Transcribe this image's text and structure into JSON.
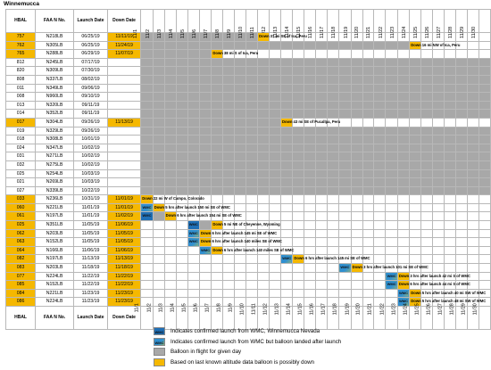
{
  "title": "Winnemucca",
  "headers": {
    "hbal": "HBAL",
    "faa": "FAA N No.",
    "launch": "Launch Date",
    "down": "Down Date"
  },
  "days": [
    "11/1",
    "11/2",
    "11/3",
    "11/4",
    "11/5",
    "11/6",
    "11/7",
    "11/8",
    "11/9",
    "11/10",
    "11/11",
    "11/12",
    "11/13",
    "11/14",
    "11/15",
    "11/16",
    "11/17",
    "11/18",
    "11/19",
    "11/20",
    "11/21",
    "11/22",
    "11/23",
    "11/24",
    "11/25",
    "11/26",
    "11/27",
    "11/28",
    "11/29",
    "11/30"
  ],
  "wmc_label": "WMC",
  "colors": {
    "highlight": "#f5b800",
    "in_flight": "#a8a8a8",
    "wmc": "#1f6fb6"
  },
  "rows": [
    {
      "hbal": "757",
      "faa": "N218LB",
      "launch": "06/25/19",
      "down": "11/11/19",
      "hi": true,
      "gray": [
        1,
        10
      ],
      "note_day": 11,
      "note": "Down 37 mi SE of Ica, Peru"
    },
    {
      "hbal": "762",
      "faa": "N305LB",
      "launch": "06/25/19",
      "down": "11/24/19",
      "hi": true,
      "gray": [
        1,
        23
      ],
      "note_day": 24,
      "note": "Down 16 mi NW of Ica, Peru"
    },
    {
      "hbal": "765",
      "faa": "N288LB",
      "launch": "06/29/19",
      "down": "11/07/19",
      "hi": true,
      "gray": [
        1,
        6
      ],
      "note_day": 7,
      "note": "Down 38 mi S of Ica, Peru"
    },
    {
      "hbal": "812",
      "faa": "N245LB",
      "launch": "07/17/19",
      "down": "",
      "gray": [
        1,
        30
      ]
    },
    {
      "hbal": "820",
      "faa": "N309LB",
      "launch": "07/30/19",
      "down": "",
      "gray": [
        1,
        30
      ]
    },
    {
      "hbal": "808",
      "faa": "N337LB",
      "launch": "08/02/19",
      "down": "",
      "gray": [
        1,
        30
      ]
    },
    {
      "hbal": "011",
      "faa": "N349LB",
      "launch": "09/06/19",
      "down": "",
      "gray": [
        1,
        30
      ]
    },
    {
      "hbal": "008",
      "faa": "N960LB",
      "launch": "09/10/19",
      "down": "",
      "gray": [
        1,
        30
      ]
    },
    {
      "hbal": "013",
      "faa": "N320LB",
      "launch": "09/11/19",
      "down": "",
      "gray": [
        1,
        30
      ]
    },
    {
      "hbal": "014",
      "faa": "N352LB",
      "launch": "09/11/19",
      "down": "",
      "gray": [
        1,
        30
      ]
    },
    {
      "hbal": "017",
      "faa": "N304LB",
      "launch": "09/26/19",
      "down": "11/13/19",
      "hi": true,
      "gray": [
        1,
        12
      ],
      "note_day": 13,
      "note": "Down 43 mi SE of Pucallpa, Peru"
    },
    {
      "hbal": "019",
      "faa": "N329LB",
      "launch": "09/26/19",
      "down": "",
      "gray": [
        1,
        30
      ]
    },
    {
      "hbal": "018",
      "faa": "N308LB",
      "launch": "10/01/19",
      "down": "",
      "gray": [
        1,
        30
      ]
    },
    {
      "hbal": "024",
      "faa": "N347LB",
      "launch": "10/02/19",
      "down": "",
      "gray": [
        1,
        30
      ]
    },
    {
      "hbal": "031",
      "faa": "N271LB",
      "launch": "10/02/19",
      "down": "",
      "gray": [
        1,
        30
      ]
    },
    {
      "hbal": "032",
      "faa": "N275LB",
      "launch": "10/02/19",
      "down": "",
      "gray": [
        1,
        30
      ]
    },
    {
      "hbal": "025",
      "faa": "N254LB",
      "launch": "10/03/19",
      "down": "",
      "gray": [
        1,
        30
      ]
    },
    {
      "hbal": "021",
      "faa": "N269LB",
      "launch": "10/03/19",
      "down": "",
      "gray": [
        1,
        30
      ]
    },
    {
      "hbal": "027",
      "faa": "N339LB",
      "launch": "10/22/19",
      "down": "",
      "gray": [
        1,
        30
      ]
    },
    {
      "hbal": "033",
      "faa": "N236LB",
      "launch": "10/31/19",
      "down": "11/01/19",
      "hi": true,
      "note_day": 1,
      "note": "Down 22 mi W of Campo, Colorado"
    },
    {
      "hbal": "060",
      "faa": "N221LB",
      "launch": "11/01/19",
      "down": "11/01/19",
      "hi": true,
      "wmc_day": 1,
      "wmc_type": "g",
      "note_day": 2,
      "note": "Down 5 hrs after launch 150 mi SE of WMC"
    },
    {
      "hbal": "061",
      "faa": "N197LB",
      "launch": "11/01/19",
      "down": "11/02/19",
      "hi": true,
      "wmc_day": 1,
      "wmc_type": "b",
      "gray": [
        2,
        2
      ],
      "note_day": 3,
      "note": "Down 6 hrs after launch 154 mi SE of WMC"
    },
    {
      "hbal": "025",
      "faa": "N351LB",
      "launch": "11/05/19",
      "down": "11/06/19",
      "hi": true,
      "wmc_day": 5,
      "wmc_type": "b",
      "gray": [
        6,
        6
      ],
      "note_day": 7,
      "note": "Down 5 mi NE of Cheyenne, Wyoming"
    },
    {
      "hbal": "062",
      "faa": "N203LB",
      "launch": "11/05/19",
      "down": "11/05/19",
      "hi": true,
      "wmc_day": 5,
      "wmc_type": "g",
      "note_day": 6,
      "note": "Down 6 hrs after launch 145 mi SE of WMC"
    },
    {
      "hbal": "063",
      "faa": "N152LB",
      "launch": "11/05/19",
      "down": "11/05/19",
      "hi": true,
      "wmc_day": 5,
      "wmc_type": "g",
      "note_day": 6,
      "note": "Down 6 hrs after launch 140 miles SE of WMC"
    },
    {
      "hbal": "064",
      "faa": "N166LB",
      "launch": "11/06/19",
      "down": "11/06/19",
      "hi": true,
      "wmc_day": 6,
      "wmc_type": "g",
      "note_day": 7,
      "note": "Down 6 hrs after launch 140 miles SE of WMC"
    },
    {
      "hbal": "082",
      "faa": "N197LB",
      "launch": "11/13/19",
      "down": "11/13/19",
      "hi": true,
      "wmc_day": 13,
      "wmc_type": "g",
      "note_day": 14,
      "note": "Down 6 hrs after launch 145 mi SE of WMC"
    },
    {
      "hbal": "083",
      "faa": "N203LB",
      "launch": "11/18/19",
      "down": "11/18/19",
      "hi": true,
      "wmc_day": 18,
      "wmc_type": "g",
      "note_day": 19,
      "note": "Down 3 hrs after launch 101 mi SE of WMC"
    },
    {
      "hbal": "077",
      "faa": "N224LB",
      "launch": "11/22/19",
      "down": "11/22/19",
      "hi": true,
      "wmc_day": 22,
      "wmc_type": "g",
      "note_day": 23,
      "note": "Down 3 hrs after launch 42 mi S of WMC"
    },
    {
      "hbal": "085",
      "faa": "N152LB",
      "launch": "11/22/19",
      "down": "11/22/19",
      "hi": true,
      "wmc_day": 22,
      "wmc_type": "g",
      "note_day": 23,
      "note": "Down 6 hrs after launch 44 mi S of WMC"
    },
    {
      "hbal": "084",
      "faa": "N221LB",
      "launch": "11/23/19",
      "down": "11/23/19",
      "hi": true,
      "wmc_day": 23,
      "wmc_type": "g",
      "note_day": 24,
      "note": "Down 5 hrs after launch 40 mi SW of WMC"
    },
    {
      "hbal": "086",
      "faa": "N224LB",
      "launch": "11/23/19",
      "down": "11/23/19",
      "hi": true,
      "wmc_day": 23,
      "wmc_type": "g",
      "note_day": 24,
      "note": "Down 5 hrs after launch 48 mi SW of WMC"
    }
  ],
  "legend": [
    {
      "swatch": "wmc",
      "text": "Indicates confirmed launch from WMC, Winnemucca Nevada"
    },
    {
      "swatch": "wmcg",
      "text": "Indicates confirmed launch from WMC but balloon landed after launch"
    },
    {
      "swatch": "gray",
      "text": "Balloon in flight for given day"
    },
    {
      "swatch": "hi",
      "text": "Based on last known altitude data balloon is possibly down"
    }
  ]
}
